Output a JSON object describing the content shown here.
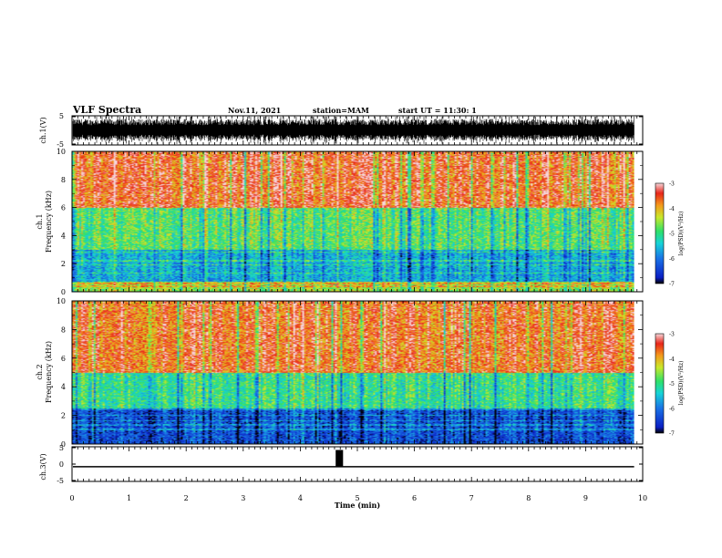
{
  "header": {
    "title": "VLF Spectra",
    "date": "Nov.11, 2021",
    "station": "station=MAM",
    "start_ut": "start UT =  11:30: 1"
  },
  "colors": {
    "colormap": [
      "#0b1fc4",
      "#1a73e6",
      "#17d3d8",
      "#2ee06a",
      "#c8e82b",
      "#f39a1c",
      "#e8261a",
      "#f4b8be"
    ]
  },
  "chart_data": [
    {
      "type": "line",
      "name": "ch1-waveform",
      "ylabel": "ch.1(V)",
      "ylim": [
        -5,
        5
      ],
      "yticks": [
        "5",
        "-5"
      ],
      "x_range": [
        0,
        10
      ],
      "data_extent": [
        0,
        9.85
      ],
      "envelope": {
        "typical_min": -4.2,
        "typical_max": 4.2,
        "spikes_max": 5,
        "spikes_min": -5
      }
    },
    {
      "type": "heatmap",
      "name": "ch1-spectrogram",
      "ylabel_top": "ch.1",
      "ylabel": "Frequency (kHz)",
      "ylim": [
        0,
        10
      ],
      "yticks": [
        "0",
        "2",
        "4",
        "6",
        "8",
        "10"
      ],
      "xlim": [
        0,
        10
      ],
      "data_extent": [
        0,
        9.85
      ],
      "colorbar": {
        "label": "log(PSD)(V²/Hz)",
        "range": [
          -7,
          -3
        ],
        "ticks": [
          "-3",
          "-4",
          "-5",
          "-6",
          "-7"
        ]
      },
      "description_bands": [
        {
          "freq_khz": [
            0,
            0.7
          ],
          "log_psd": -4.5
        },
        {
          "freq_khz": [
            0.7,
            3
          ],
          "log_psd": -5.6
        },
        {
          "freq_khz": [
            3,
            6
          ],
          "log_psd": -4.8
        },
        {
          "freq_khz": [
            6,
            10
          ],
          "log_psd": -3.5
        }
      ],
      "horizontal_lines_khz": [
        0.35,
        0.55,
        1.3,
        1.9,
        2.2,
        2.8
      ]
    },
    {
      "type": "heatmap",
      "name": "ch2-spectrogram",
      "ylabel_top": "ch.2",
      "ylabel": "Frequency (kHz)",
      "ylim": [
        0,
        10
      ],
      "yticks": [
        "0",
        "2",
        "4",
        "6",
        "8",
        "10"
      ],
      "xlim": [
        0,
        10
      ],
      "data_extent": [
        0,
        9.85
      ],
      "colorbar": {
        "label": "log(PSD)(V²/Hz)",
        "range": [
          -7,
          -3
        ],
        "ticks": [
          "-3",
          "-4",
          "-5",
          "-6",
          "-7"
        ]
      },
      "description_bands": [
        {
          "freq_khz": [
            0,
            2.5
          ],
          "log_psd": -6.3
        },
        {
          "freq_khz": [
            2.5,
            5
          ],
          "log_psd": -5.0
        },
        {
          "freq_khz": [
            5,
            10
          ],
          "log_psd": -3.6
        }
      ],
      "horizontal_lines_khz": [
        1.0,
        1.3,
        1.6,
        2.0,
        2.4
      ]
    },
    {
      "type": "line",
      "name": "ch3-waveform",
      "ylabel": "ch.3(V)",
      "ylim": [
        -5,
        5
      ],
      "yticks": [
        "5",
        "0",
        "-5"
      ],
      "xlim": [
        0,
        10
      ],
      "xlabel": "Time (min)",
      "xticks": [
        "0",
        "1",
        "2",
        "3",
        "4",
        "5",
        "6",
        "7",
        "8",
        "9",
        "10"
      ],
      "baseline_v": -0.8,
      "pulse": {
        "t_start_min": 4.62,
        "t_end_min": 4.75,
        "v": 4.3
      },
      "data_extent": [
        0,
        9.85
      ]
    }
  ]
}
